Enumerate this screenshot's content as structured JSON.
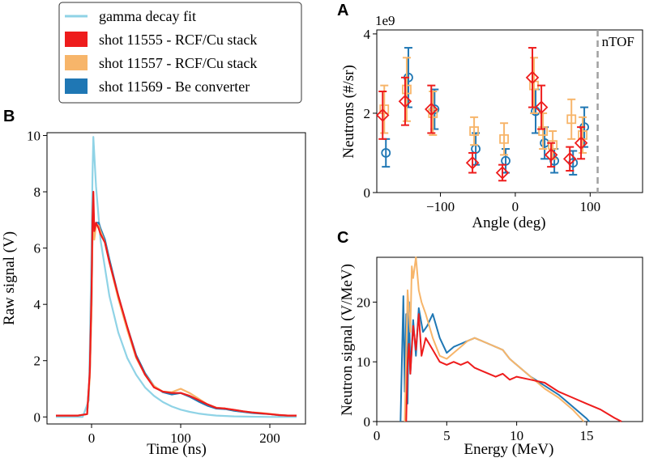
{
  "colors": {
    "gamma_fit": "#8fd3e6",
    "red": "#ee1c1c",
    "orange": "#f7b56a",
    "blue": "#1f77b4",
    "ntof": "#a0a0a0"
  },
  "legend": {
    "entries": [
      {
        "label": "gamma decay fit",
        "color": "#8fd3e6",
        "kind": "line"
      },
      {
        "label": "shot 11555 - RCF/Cu stack",
        "color": "#ee1c1c",
        "kind": "patch"
      },
      {
        "label": "shot 11557 - RCF/Cu stack",
        "color": "#f7b56a",
        "kind": "patch"
      },
      {
        "label": "shot 11569 - Be converter",
        "color": "#1f77b4",
        "kind": "patch"
      }
    ]
  },
  "chart_data": [
    {
      "panel": "A",
      "type": "scatter",
      "title": "A",
      "xlabel": "Angle (deg)",
      "ylabel": "Neutrons (#/sr)",
      "offset_text": "1e9",
      "xlim": [
        -185,
        170
      ],
      "ylim": [
        0,
        4.1
      ],
      "xticks": [
        -100,
        0,
        100
      ],
      "xtick_labels": [
        "−100",
        "0",
        "100"
      ],
      "yticks": [
        0,
        2,
        4
      ],
      "ytick_labels": [
        "0",
        "2",
        "4"
      ],
      "vline": {
        "x": 110,
        "label": "nTOF"
      },
      "series": [
        {
          "name": "shot 11569 - Be converter",
          "marker": "circle",
          "color": "#1f77b4",
          "points": [
            {
              "x": -175,
              "y": 1.0,
              "err": 0.35
            },
            {
              "x": -145,
              "y": 2.9,
              "err": 0.75
            },
            {
              "x": -110,
              "y": 2.1,
              "err": 0.5
            },
            {
              "x": -55,
              "y": 1.1,
              "err": 0.4
            },
            {
              "x": -15,
              "y": 0.8,
              "err": 0.3
            },
            {
              "x": 25,
              "y": 2.05,
              "err": 0.55
            },
            {
              "x": 37,
              "y": 1.25,
              "err": 0.4
            },
            {
              "x": 50,
              "y": 0.8,
              "err": 0.3
            },
            {
              "x": 75,
              "y": 0.75,
              "err": 0.3
            },
            {
              "x": 90,
              "y": 1.65,
              "err": 0.5
            }
          ]
        },
        {
          "name": "shot 11557 - RCF/Cu stack",
          "marker": "square",
          "color": "#f7b56a",
          "points": [
            {
              "x": -175,
              "y": 2.1,
              "err": 0.6
            },
            {
              "x": -145,
              "y": 2.6,
              "err": 0.8
            },
            {
              "x": -110,
              "y": 2.0,
              "err": 0.55
            },
            {
              "x": -55,
              "y": 1.55,
              "err": 0.35
            },
            {
              "x": -15,
              "y": 1.35,
              "err": 0.4
            },
            {
              "x": 25,
              "y": 2.7,
              "err": 0.7
            },
            {
              "x": 37,
              "y": 1.55,
              "err": 0.45
            },
            {
              "x": 50,
              "y": 1.2,
              "err": 0.35
            },
            {
              "x": 75,
              "y": 1.85,
              "err": 0.5
            },
            {
              "x": 90,
              "y": 1.45,
              "err": 0.45
            }
          ]
        },
        {
          "name": "shot 11555 - RCF/Cu stack",
          "marker": "diamond",
          "color": "#ee1c1c",
          "points": [
            {
              "x": -175,
              "y": 1.95,
              "err": 0.6
            },
            {
              "x": -145,
              "y": 2.3,
              "err": 0.6
            },
            {
              "x": -110,
              "y": 2.1,
              "err": 0.6
            },
            {
              "x": -55,
              "y": 0.75,
              "err": 0.25
            },
            {
              "x": -15,
              "y": 0.5,
              "err": 0.2
            },
            {
              "x": 25,
              "y": 2.9,
              "err": 0.75
            },
            {
              "x": 37,
              "y": 2.15,
              "err": 0.55
            },
            {
              "x": 50,
              "y": 0.95,
              "err": 0.3
            },
            {
              "x": 75,
              "y": 0.85,
              "err": 0.3
            },
            {
              "x": 90,
              "y": 1.25,
              "err": 0.4
            }
          ]
        }
      ]
    },
    {
      "panel": "B",
      "type": "line",
      "title": "B",
      "xlabel": "Time (ns)",
      "ylabel": "Raw signal (V)",
      "xlim": [
        -50,
        240
      ],
      "ylim": [
        -0.25,
        10.1
      ],
      "xticks": [
        0,
        100,
        200
      ],
      "xtick_labels": [
        "0",
        "100",
        "200"
      ],
      "yticks": [
        0,
        2,
        4,
        6,
        8,
        10
      ],
      "ytick_labels": [
        "0",
        "2",
        "4",
        "6",
        "8",
        "10"
      ],
      "series": [
        {
          "name": "gamma decay fit",
          "color": "#8fd3e6",
          "x": [
            -40,
            -10,
            -3,
            0,
            1,
            2,
            5,
            10,
            20,
            30,
            40,
            50,
            60,
            70,
            80,
            90,
            100,
            110,
            120,
            130,
            140,
            160,
            180,
            200,
            230
          ],
          "y": [
            0,
            0,
            0.6,
            6.0,
            8.5,
            9.95,
            8.2,
            6.3,
            4.3,
            3.0,
            2.1,
            1.5,
            1.05,
            0.75,
            0.53,
            0.37,
            0.26,
            0.18,
            0.12,
            0.08,
            0.05,
            0.02,
            0.01,
            0,
            0
          ]
        },
        {
          "name": "shot 11569 - Be converter",
          "color": "#1f77b4",
          "x": [
            -40,
            -15,
            -5,
            -2,
            0,
            1,
            2,
            3,
            5,
            8,
            10,
            15,
            20,
            30,
            40,
            50,
            60,
            70,
            80,
            90,
            100,
            110,
            120,
            130,
            140,
            150,
            160,
            170,
            180,
            190,
            200,
            210,
            220,
            230
          ],
          "y": [
            0.05,
            0.05,
            0.1,
            1.5,
            4.0,
            6.5,
            7.5,
            6.4,
            6.9,
            6.9,
            6.7,
            6.3,
            5.6,
            4.3,
            3.2,
            2.2,
            1.55,
            1.1,
            0.88,
            0.8,
            0.85,
            0.72,
            0.55,
            0.4,
            0.3,
            0.28,
            0.22,
            0.18,
            0.14,
            0.12,
            0.1,
            0.06,
            0.05,
            0.05
          ]
        },
        {
          "name": "shot 11557 - RCF/Cu stack",
          "color": "#f7b56a",
          "x": [
            -40,
            -15,
            -5,
            -2,
            0,
            1,
            2,
            3,
            5,
            8,
            10,
            15,
            20,
            30,
            40,
            50,
            60,
            70,
            80,
            90,
            100,
            110,
            120,
            130,
            140,
            150,
            160,
            170,
            180,
            190,
            200,
            210,
            220,
            230
          ],
          "y": [
            0.05,
            0.05,
            0.1,
            1.4,
            3.8,
            6.3,
            7.3,
            6.3,
            6.8,
            6.8,
            6.6,
            6.2,
            5.5,
            4.2,
            3.1,
            2.1,
            1.5,
            1.1,
            0.9,
            0.88,
            1.0,
            0.85,
            0.65,
            0.45,
            0.33,
            0.3,
            0.25,
            0.2,
            0.16,
            0.14,
            0.11,
            0.07,
            0.05,
            0.05
          ]
        },
        {
          "name": "shot 11555 - RCF/Cu stack",
          "color": "#ee1c1c",
          "x": [
            -40,
            -15,
            -5,
            -2,
            0,
            1,
            2,
            3,
            5,
            8,
            10,
            15,
            20,
            30,
            40,
            50,
            60,
            70,
            80,
            90,
            100,
            110,
            120,
            130,
            140,
            150,
            160,
            170,
            180,
            190,
            200,
            210,
            220,
            230
          ],
          "y": [
            0.05,
            0.05,
            0.1,
            1.6,
            4.5,
            7.0,
            8.0,
            6.6,
            6.9,
            6.7,
            6.5,
            6.2,
            5.5,
            4.3,
            3.2,
            2.15,
            1.5,
            1.05,
            0.9,
            0.85,
            0.85,
            0.75,
            0.6,
            0.45,
            0.32,
            0.3,
            0.25,
            0.2,
            0.16,
            0.13,
            0.1,
            0.07,
            0.05,
            0.05
          ]
        }
      ]
    },
    {
      "panel": "C",
      "type": "line",
      "title": "C",
      "xlabel": "Energy (MeV)",
      "ylabel": "Neutron signal (V/MeV)",
      "xlim": [
        0,
        19
      ],
      "ylim": [
        0,
        27.5
      ],
      "xticks": [
        0,
        5,
        10,
        15
      ],
      "xtick_labels": [
        "0",
        "5",
        "10",
        "15"
      ],
      "yticks": [
        0,
        10,
        20
      ],
      "ytick_labels": [
        "0",
        "10",
        "20"
      ],
      "series": [
        {
          "name": "shot 11569 - Be converter",
          "color": "#1f77b4",
          "x": [
            1.7,
            1.9,
            2.0,
            2.1,
            2.2,
            2.3,
            2.4,
            2.6,
            2.8,
            3.0,
            3.3,
            3.6,
            4.0,
            4.5,
            5.0,
            5.5,
            6.0,
            6.5,
            7.0,
            7.5,
            8.0,
            8.5,
            9.0,
            9.5,
            10.0,
            11.0,
            12.0,
            13.0,
            14.0,
            14.5,
            15.0,
            15.2
          ],
          "y": [
            0,
            21,
            5,
            18,
            3,
            20,
            8,
            17,
            11,
            19,
            15,
            16,
            18,
            14,
            11.5,
            12.5,
            13,
            13.5,
            14,
            13.5,
            13,
            12.5,
            12,
            10.5,
            9.5,
            7.5,
            6,
            4.5,
            2.5,
            1.5,
            0.5,
            0
          ]
        },
        {
          "name": "shot 11557 - RCF/Cu stack",
          "color": "#f7b56a",
          "x": [
            2.0,
            2.2,
            2.4,
            2.5,
            2.6,
            2.8,
            3.0,
            3.2,
            3.5,
            4.0,
            4.5,
            5.0,
            5.5,
            6.0,
            6.5,
            7.0,
            7.5,
            8.0,
            8.5,
            9.0,
            9.5,
            10.0,
            11.0,
            12.0,
            13.0,
            14.0,
            14.8
          ],
          "y": [
            0,
            22,
            15,
            26,
            24,
            27.5,
            22,
            20,
            18,
            14,
            11,
            10.5,
            11.5,
            12.5,
            13.5,
            14,
            13.5,
            13,
            12.5,
            12,
            10.5,
            9.5,
            7.5,
            5.5,
            4,
            2,
            0
          ]
        },
        {
          "name": "shot 11555 - RCF/Cu stack",
          "color": "#ee1c1c",
          "x": [
            2.1,
            2.2,
            2.3,
            2.4,
            2.6,
            2.8,
            3.0,
            3.2,
            3.5,
            4.0,
            4.5,
            5.0,
            5.5,
            6.0,
            6.5,
            7.0,
            7.5,
            8.0,
            8.5,
            9.0,
            9.5,
            10.0,
            11.0,
            12.0,
            13.0,
            14.0,
            15.0,
            16.0,
            17.0,
            17.5
          ],
          "y": [
            0,
            10,
            13,
            8,
            16,
            12,
            18,
            11,
            14,
            12,
            10,
            9.5,
            10,
            9.5,
            10,
            9,
            8.5,
            8,
            7.5,
            8,
            7,
            7.5,
            7,
            6.5,
            5,
            4,
            3,
            2,
            0.6,
            0
          ]
        }
      ]
    }
  ]
}
